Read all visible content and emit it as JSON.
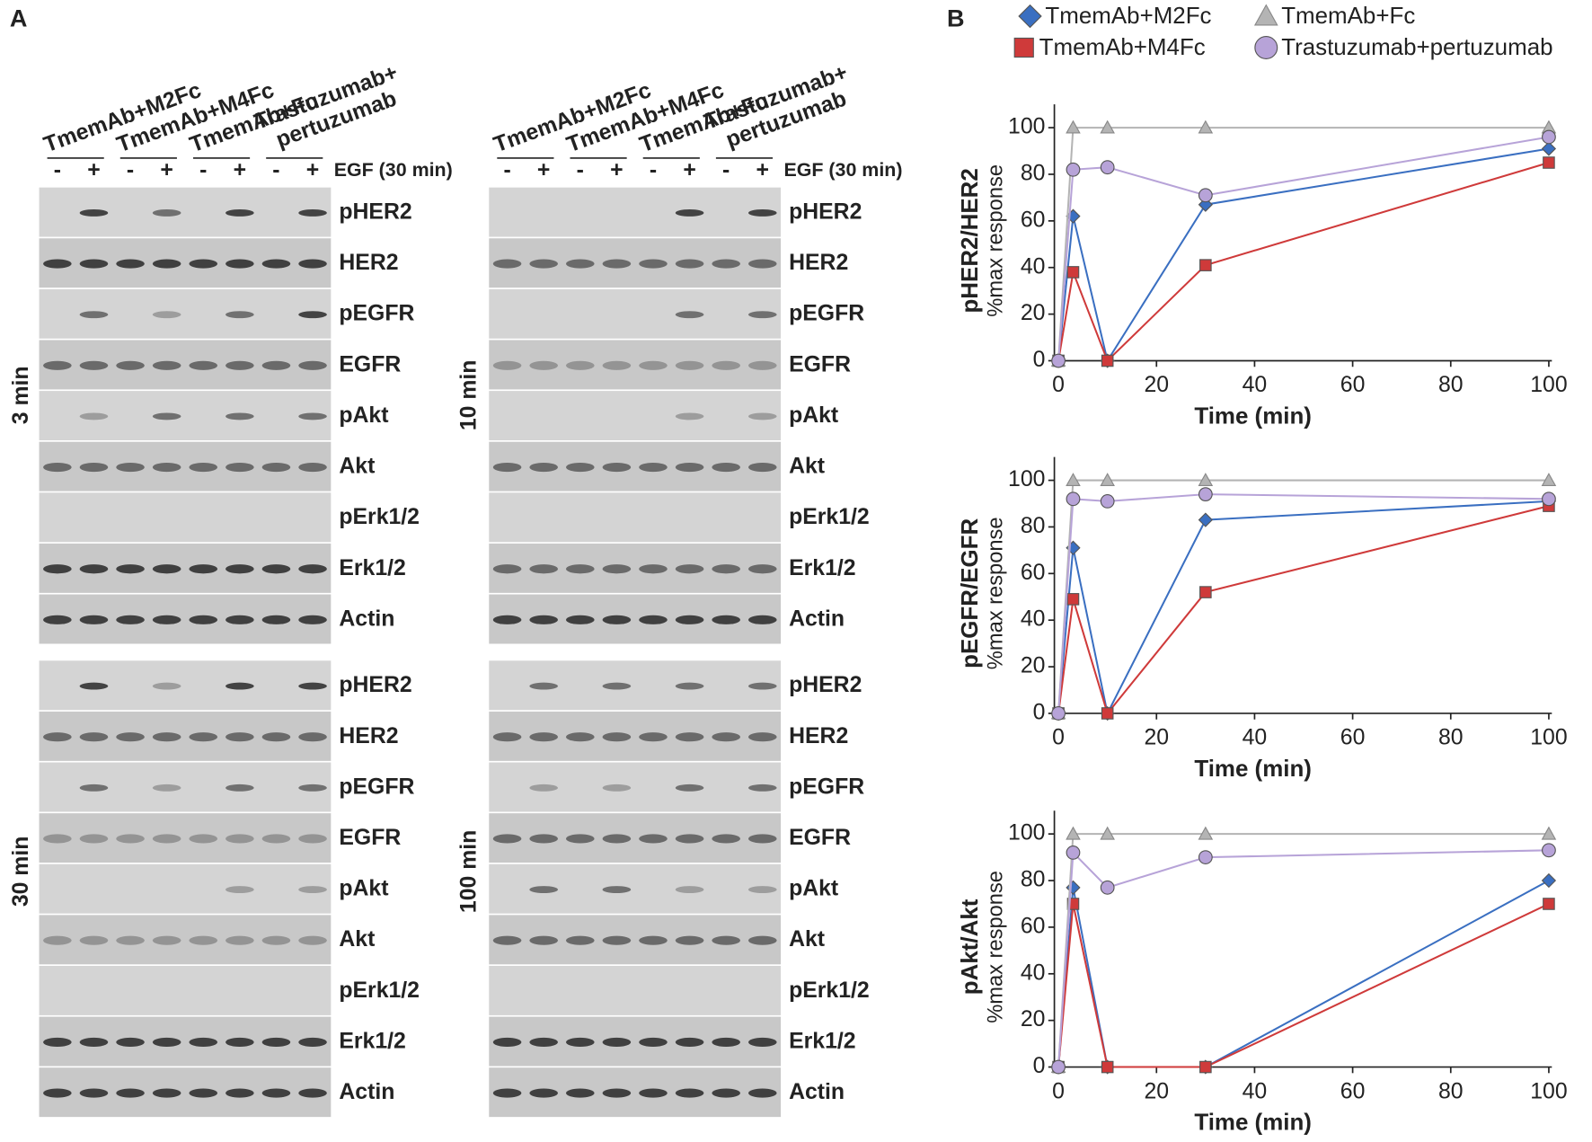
{
  "panel_a": {
    "label": "A",
    "headers": [
      [
        "TmemAb+M2Fc"
      ],
      [
        "TmemAb+M4Fc"
      ],
      [
        "TmemAb+Fc"
      ],
      [
        "Trastuzumab+",
        "pertuzumab"
      ]
    ],
    "minus": "-",
    "plus": "+",
    "treatment": "EGF (30 min)",
    "times": [
      "3 min",
      "10 min",
      "30 min",
      "100 min"
    ],
    "rows": [
      "pHER2",
      "HER2",
      "pEGFR",
      "EGFR",
      "pAkt",
      "Akt",
      "pErk1/2",
      "Erk1/2",
      "Actin"
    ]
  },
  "panel_b_label": "B",
  "chart_data": [
    {
      "type": "line",
      "ylabel": "pHER2/HER2",
      "ylabel_sub": "%max response",
      "xlabel": "Time (min)",
      "x": [
        0,
        3,
        10,
        30,
        100
      ],
      "xlim": [
        0,
        100
      ],
      "xticks": [
        0,
        20,
        40,
        60,
        80,
        100
      ],
      "ylim": [
        0,
        110
      ],
      "yticks": [
        0,
        20,
        40,
        60,
        80,
        100
      ],
      "series": [
        {
          "name": "TmemAb+M2Fc",
          "color": "#3a6fc1",
          "marker": "diamond",
          "values": [
            0,
            62,
            0,
            67,
            91
          ]
        },
        {
          "name": "TmemAb+M4Fc",
          "color": "#cf3a3a",
          "marker": "square",
          "values": [
            0,
            38,
            0,
            41,
            85
          ]
        },
        {
          "name": "TmemAb+Fc",
          "color": "#b4b4b4",
          "marker": "triangle",
          "values": [
            0,
            100,
            100,
            100,
            100
          ]
        },
        {
          "name": "Trastuzumab+pertuzumab",
          "color": "#b7a3d8",
          "marker": "circle",
          "values": [
            0,
            82,
            83,
            71,
            96
          ]
        }
      ]
    },
    {
      "type": "line",
      "ylabel": "pEGFR/EGFR",
      "ylabel_sub": "%max response",
      "xlabel": "Time (min)",
      "x": [
        0,
        3,
        10,
        30,
        100
      ],
      "xlim": [
        0,
        100
      ],
      "xticks": [
        0,
        20,
        40,
        60,
        80,
        100
      ],
      "ylim": [
        0,
        110
      ],
      "yticks": [
        0,
        20,
        40,
        60,
        80,
        100
      ],
      "series": [
        {
          "color": "#3a6fc1",
          "marker": "diamond",
          "values": [
            0,
            71,
            0,
            83,
            91
          ]
        },
        {
          "color": "#cf3a3a",
          "marker": "square",
          "values": [
            0,
            49,
            0,
            52,
            89
          ]
        },
        {
          "color": "#b4b4b4",
          "marker": "triangle",
          "values": [
            0,
            100,
            100,
            100,
            100
          ]
        },
        {
          "color": "#b7a3d8",
          "marker": "circle",
          "values": [
            0,
            92,
            91,
            94,
            92
          ]
        }
      ]
    },
    {
      "type": "line",
      "ylabel": "pAkt/Akt",
      "ylabel_sub": "%max response",
      "xlabel": "Time (min)",
      "x": [
        0,
        3,
        10,
        30,
        100
      ],
      "xlim": [
        0,
        100
      ],
      "xticks": [
        0,
        20,
        40,
        60,
        80,
        100
      ],
      "ylim": [
        0,
        110
      ],
      "yticks": [
        0,
        20,
        40,
        60,
        80,
        100
      ],
      "series": [
        {
          "color": "#3a6fc1",
          "marker": "diamond",
          "values": [
            0,
            77,
            0,
            0,
            80
          ]
        },
        {
          "color": "#cf3a3a",
          "marker": "square",
          "values": [
            0,
            70,
            0,
            0,
            70
          ]
        },
        {
          "color": "#b4b4b4",
          "marker": "triangle",
          "values": [
            0,
            100,
            100,
            100,
            100
          ]
        },
        {
          "color": "#b7a3d8",
          "marker": "circle",
          "values": [
            0,
            92,
            77,
            90,
            93
          ]
        }
      ]
    }
  ]
}
